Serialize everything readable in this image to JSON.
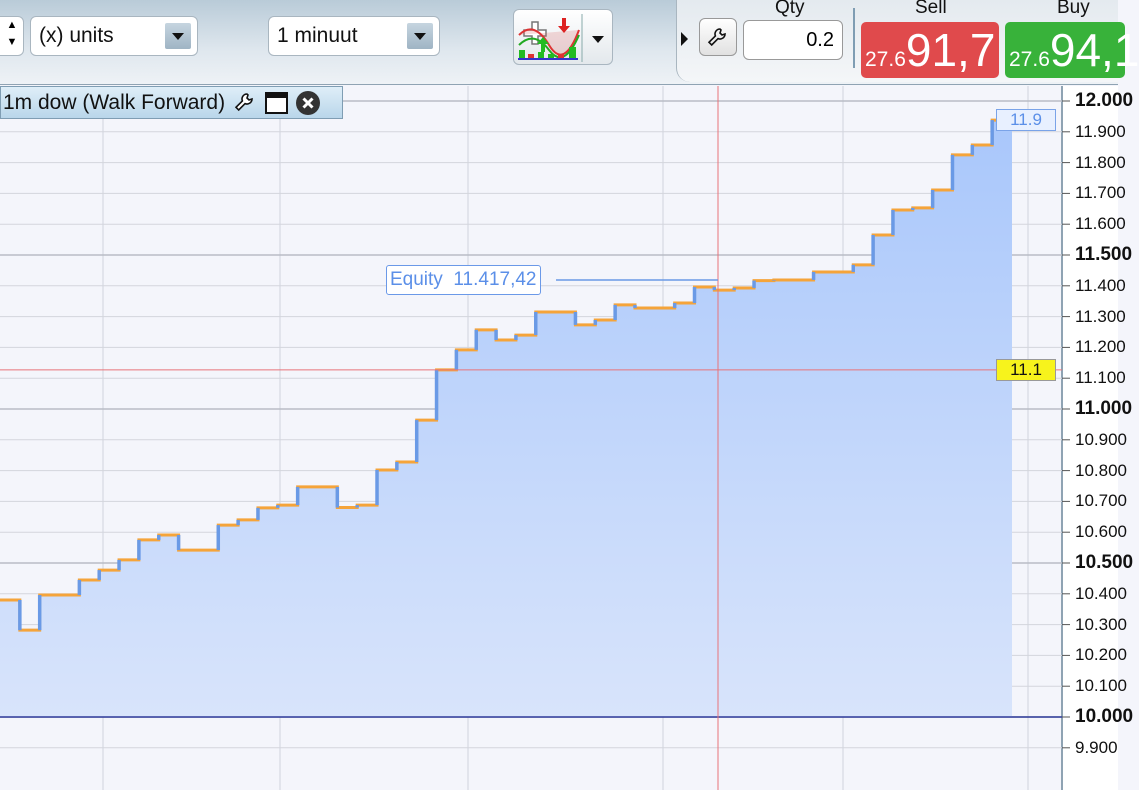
{
  "toolbar": {
    "units_select": "(x) units",
    "timeframe_select": "1 minuut",
    "indicator_icon": "add-indicator-icon",
    "spinner_up": "▲",
    "spinner_down": "▼"
  },
  "trade": {
    "qty_label": "Qty",
    "qty_value": "0.2",
    "sell_label": "Sell",
    "sell_prefix": "27.6",
    "sell_big": "91,7",
    "buy_label": "Buy",
    "buy_prefix": "27.6",
    "buy_big": "94,1",
    "sell_color": "#e04a4c",
    "buy_color": "#38b23a"
  },
  "chart": {
    "title": "1m dow (Walk Forward)",
    "equity_label": "Equity",
    "equity_value": "11.417,42",
    "last_marker": "11.9",
    "crosshair_marker": "11.1",
    "colors": {
      "fill": "#a9c7fb",
      "line_up": "#6a9ae6",
      "line_flat": "#f5a43a",
      "crosshair": "#e8737a",
      "baseline": "#2f3a9a"
    }
  },
  "chart_data": {
    "type": "area",
    "ylim": [
      9850,
      12030
    ],
    "yticks": [
      {
        "v": 12000,
        "t": "12.000",
        "b": true
      },
      {
        "v": 11900,
        "t": "11.900"
      },
      {
        "v": 11800,
        "t": "11.800"
      },
      {
        "v": 11700,
        "t": "11.700"
      },
      {
        "v": 11600,
        "t": "11.600"
      },
      {
        "v": 11500,
        "t": "11.500",
        "b": true
      },
      {
        "v": 11400,
        "t": "11.400"
      },
      {
        "v": 11300,
        "t": "11.300"
      },
      {
        "v": 11200,
        "t": "11.200"
      },
      {
        "v": 11100,
        "t": "11.100"
      },
      {
        "v": 11000,
        "t": "11.000",
        "b": true
      },
      {
        "v": 10900,
        "t": "10.900"
      },
      {
        "v": 10800,
        "t": "10.800"
      },
      {
        "v": 10700,
        "t": "10.700"
      },
      {
        "v": 10600,
        "t": "10.600"
      },
      {
        "v": 10500,
        "t": "10.500",
        "b": true
      },
      {
        "v": 10400,
        "t": "10.400"
      },
      {
        "v": 10300,
        "t": "10.300"
      },
      {
        "v": 10200,
        "t": "10.200"
      },
      {
        "v": 10100,
        "t": "10.100"
      },
      {
        "v": 10000,
        "t": "10.000",
        "b": true
      },
      {
        "v": 9900,
        "t": "9.900"
      }
    ],
    "series": [
      {
        "values": [
          10380,
          10282,
          10396,
          10396,
          10445,
          10477,
          10510,
          10575,
          10591,
          10542,
          10542,
          10623,
          10640,
          10679,
          10688,
          10747,
          10747,
          10680,
          10688,
          10802,
          10828,
          10964,
          11127,
          11192,
          11257,
          11224,
          11240,
          11315,
          11315,
          11273,
          11289,
          11338,
          11328,
          11328,
          11344,
          11396,
          11386,
          11393,
          11417,
          11419,
          11419,
          11445,
          11445,
          11468,
          11565,
          11646,
          11653,
          11711,
          11825,
          11857,
          11938,
          11938
        ]
      }
    ],
    "crosshair_value": 11127,
    "baseline": 10000
  }
}
